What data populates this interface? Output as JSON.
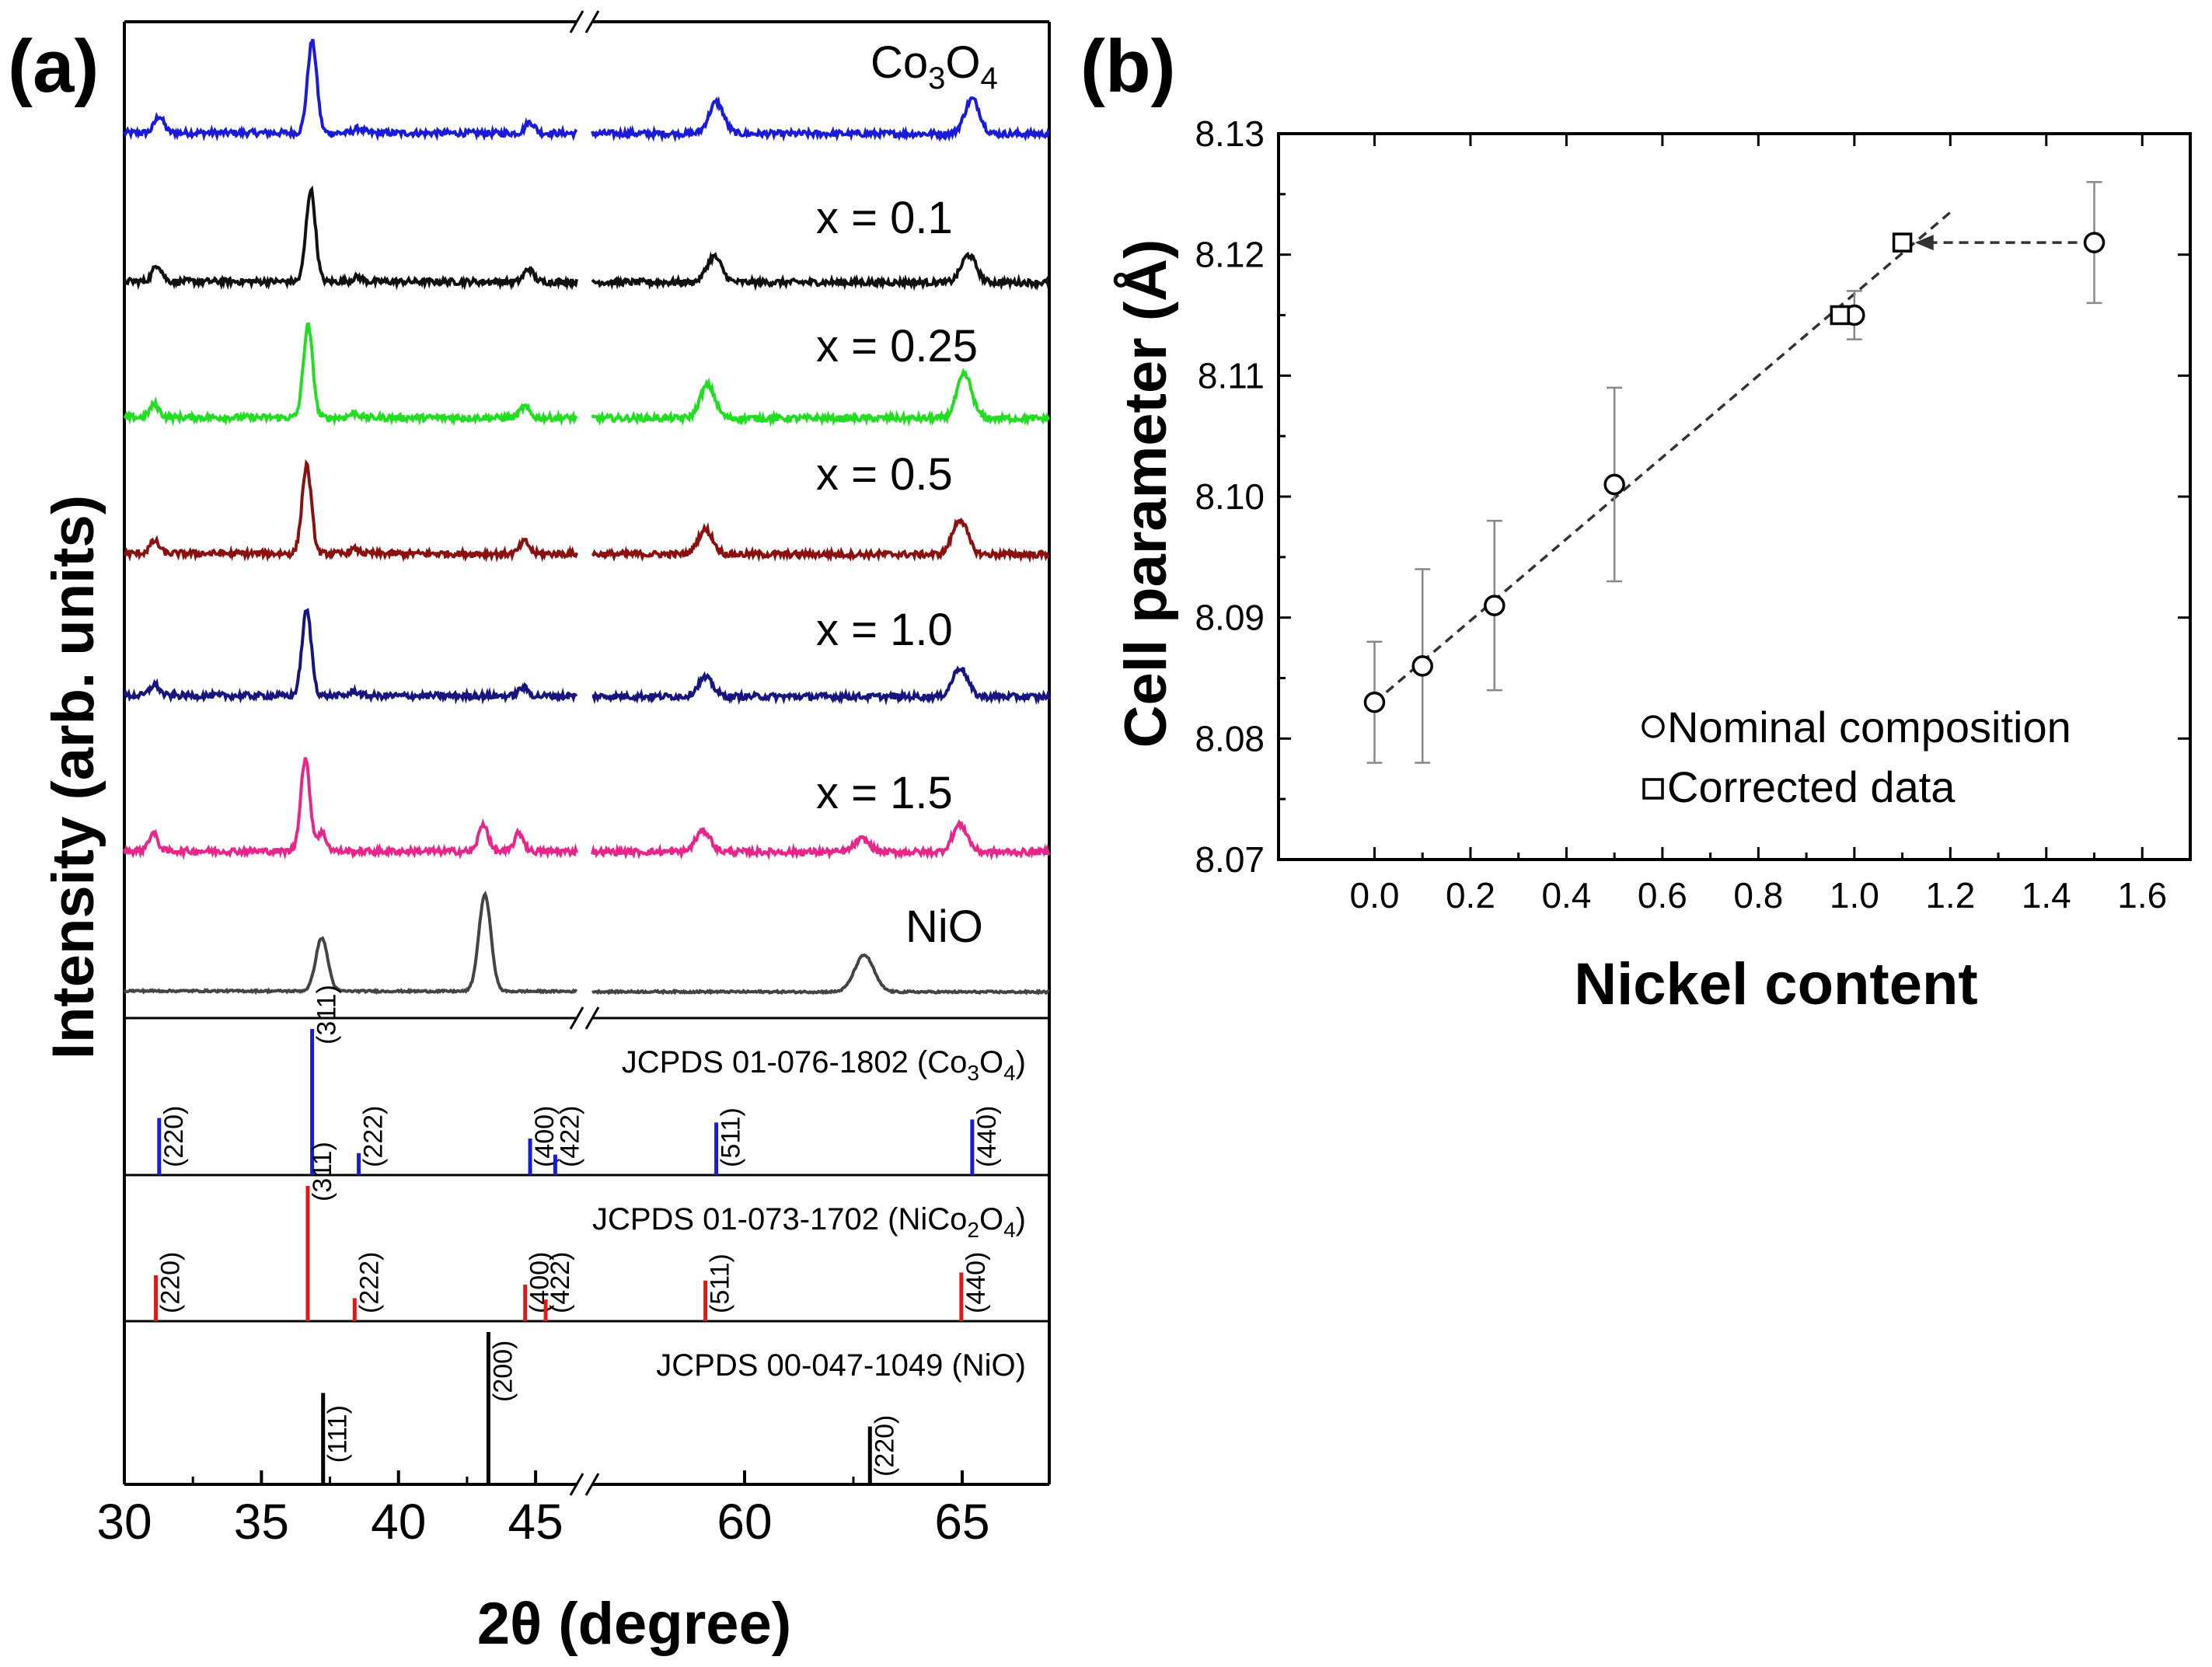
{
  "panel_a_label": "(a)",
  "panel_b_label": "(b)",
  "chart_data": [
    {
      "type": "line",
      "panel": "(a)",
      "xlabel": "2θ (degree)",
      "ylabel": "Intensity (arb. units)",
      "x_ticks": [
        30,
        35,
        40,
        45,
        60,
        65
      ],
      "axis_break": {
        "left_segment": [
          30,
          46.5
        ],
        "right_segment": [
          56.5,
          67
        ]
      },
      "series": [
        {
          "name": "Co3O4",
          "label_main": "Co",
          "label_sub1": "3",
          "label_mid": "O",
          "label_sub2": "4",
          "color": "#1a1adb",
          "peaks": [
            [
              31.27,
              0.18
            ],
            [
              36.85,
              1.0
            ],
            [
              38.55,
              0.05
            ],
            [
              44.8,
              0.12
            ],
            [
              55.65,
              0.05
            ],
            [
              59.35,
              0.34
            ],
            [
              65.23,
              0.38
            ]
          ]
        },
        {
          "name": "x = 0.1",
          "label": "x = 0.1",
          "color": "#111111",
          "peaks": [
            [
              31.2,
              0.18
            ],
            [
              36.8,
              1.0
            ],
            [
              38.5,
              0.05
            ],
            [
              44.75,
              0.14
            ],
            [
              55.6,
              0.06
            ],
            [
              59.3,
              0.28
            ],
            [
              65.15,
              0.3
            ]
          ]
        },
        {
          "name": "x = 0.25",
          "label": "x = 0.25",
          "color": "#22dd22",
          "peaks": [
            [
              31.1,
              0.14
            ],
            [
              36.7,
              1.0
            ],
            [
              38.4,
              0.05
            ],
            [
              44.6,
              0.12
            ],
            [
              55.5,
              0.07
            ],
            [
              59.15,
              0.36
            ],
            [
              65.05,
              0.48
            ]
          ]
        },
        {
          "name": "x = 0.5",
          "label": "x = 0.5",
          "color": "#8b1010",
          "peaks": [
            [
              31.1,
              0.14
            ],
            [
              36.65,
              1.0
            ],
            [
              38.4,
              0.05
            ],
            [
              44.6,
              0.14
            ],
            [
              55.45,
              0.09
            ],
            [
              59.1,
              0.28
            ],
            [
              64.95,
              0.4
            ]
          ]
        },
        {
          "name": "x = 1.0",
          "label": "x = 1.0",
          "color": "#16167e",
          "peaks": [
            [
              31.1,
              0.13
            ],
            [
              36.65,
              1.0
            ],
            [
              38.4,
              0.05
            ],
            [
              44.55,
              0.1
            ],
            [
              55.4,
              0.05
            ],
            [
              59.1,
              0.22
            ],
            [
              64.95,
              0.34
            ]
          ]
        },
        {
          "name": "x = 1.5",
          "label": "x = 1.5",
          "color": "#e8268a",
          "peaks": [
            [
              31.05,
              0.19
            ],
            [
              36.6,
              1.0
            ],
            [
              37.2,
              0.2
            ],
            [
              43.1,
              0.3
            ],
            [
              44.4,
              0.2
            ],
            [
              55.4,
              0.05
            ],
            [
              59.05,
              0.23
            ],
            [
              62.7,
              0.14
            ],
            [
              64.95,
              0.3
            ]
          ]
        },
        {
          "name": "NiO",
          "label": "NiO",
          "color": "#444444",
          "peaks": [
            [
              37.2,
              0.55
            ],
            [
              43.15,
              1.0
            ],
            [
              62.75,
              0.38
            ]
          ]
        }
      ],
      "references": [
        {
          "title_pre": "JCPDS 01-076-1802 (Co",
          "title_sub1": "3",
          "title_mid": "O",
          "title_sub2": "4",
          "title_post": ")",
          "color": "#1a1adb",
          "lines": [
            {
              "x": 31.27,
              "h": 0.39,
              "hkl": "(220)"
            },
            {
              "x": 36.85,
              "h": 1.0,
              "hkl": "(311)"
            },
            {
              "x": 38.55,
              "h": 0.15,
              "hkl": "(222)"
            },
            {
              "x": 44.8,
              "h": 0.25,
              "hkl": "(400)"
            },
            {
              "x": 55.65,
              "h": 0.14,
              "hkl": "(422)"
            },
            {
              "x": 59.35,
              "h": 0.36,
              "hkl": "(511)"
            },
            {
              "x": 65.23,
              "h": 0.38,
              "hkl": "(440)"
            }
          ]
        },
        {
          "title_pre": "JCPDS 01-073-1702 (NiCo",
          "title_sub1": "2",
          "title_mid": "O",
          "title_sub2": "4",
          "title_post": ")",
          "color": "#e01818",
          "lines": [
            {
              "x": 31.15,
              "h": 0.34,
              "hkl": "(220)"
            },
            {
              "x": 36.69,
              "h": 1.0,
              "hkl": "(311)"
            },
            {
              "x": 38.4,
              "h": 0.17,
              "hkl": "(222)"
            },
            {
              "x": 44.62,
              "h": 0.27,
              "hkl": "(400)"
            },
            {
              "x": 55.43,
              "h": 0.16,
              "hkl": "(422)"
            },
            {
              "x": 59.1,
              "h": 0.3,
              "hkl": "(511)"
            },
            {
              "x": 64.98,
              "h": 0.36,
              "hkl": "(440)"
            }
          ]
        },
        {
          "title_pre": "JCPDS 00-047-1049 (NiO)",
          "title_sub1": "",
          "title_mid": "",
          "title_sub2": "",
          "title_post": "",
          "color": "#000000",
          "lines": [
            {
              "x": 37.25,
              "h": 0.6,
              "hkl": "(111)"
            },
            {
              "x": 43.28,
              "h": 1.0,
              "hkl": "(200)"
            },
            {
              "x": 62.88,
              "h": 0.38,
              "hkl": "(220)"
            }
          ]
        }
      ]
    },
    {
      "type": "scatter",
      "panel": "(b)",
      "xlabel": "Nickel content",
      "ylabel": "Cell parameter  (Å)",
      "xlim": [
        -0.2,
        1.7
      ],
      "ylim": [
        8.07,
        8.13
      ],
      "x_ticks": [
        "0.0",
        "0.2",
        "0.4",
        "0.6",
        "0.8",
        "1.0",
        "1.2",
        "1.4",
        "1.6"
      ],
      "y_ticks": [
        "8.07",
        "8.08",
        "8.09",
        "8.10",
        "8.11",
        "8.12",
        "8.13"
      ],
      "series": [
        {
          "name": "Nominal composition",
          "marker": "circle",
          "points": [
            {
              "x": 0.0,
              "y": 8.083,
              "err": 0.005
            },
            {
              "x": 0.1,
              "y": 8.086,
              "err": 0.008
            },
            {
              "x": 0.25,
              "y": 8.091,
              "err": 0.007
            },
            {
              "x": 0.5,
              "y": 8.101,
              "err": 0.008
            },
            {
              "x": 1.0,
              "y": 8.115,
              "err": 0.002
            },
            {
              "x": 1.5,
              "y": 8.121,
              "err": 0.005
            }
          ]
        },
        {
          "name": "Corrected data",
          "marker": "square",
          "points": [
            {
              "x": 0.97,
              "y": 8.115
            },
            {
              "x": 1.1,
              "y": 8.121
            }
          ]
        }
      ],
      "fit_line": {
        "x": [
          0.0,
          1.2
        ],
        "y": [
          8.083,
          8.1235
        ]
      },
      "arrow": {
        "from": [
          1.5,
          8.121
        ],
        "to": [
          1.11,
          8.121
        ]
      },
      "legend_placement": "bottom-right"
    }
  ]
}
